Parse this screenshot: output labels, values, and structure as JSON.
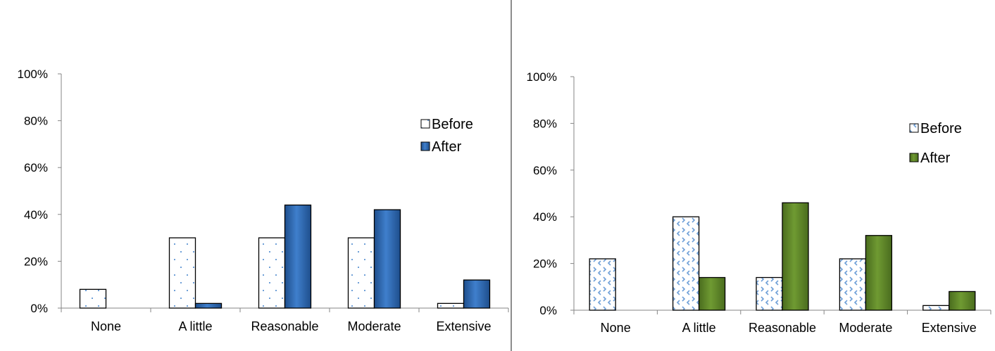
{
  "chart_data": [
    {
      "type": "bar",
      "title": "",
      "xlabel": "",
      "ylabel": "",
      "categories": [
        "None",
        "A little",
        "Reasonable",
        "Moderate",
        "Extensive"
      ],
      "yticks": [
        "0%",
        "20%",
        "40%",
        "60%",
        "80%",
        "100%"
      ],
      "ylim": [
        0,
        100
      ],
      "grid": false,
      "legend_position": "right",
      "series": [
        {
          "name": "Before",
          "values": [
            8,
            30,
            30,
            30,
            2
          ],
          "color": "#ffffff",
          "pattern": "dots",
          "pattern_color": "#6fa0d8"
        },
        {
          "name": "After",
          "values": [
            0,
            2,
            44,
            42,
            12
          ],
          "color": "#3f7fcc",
          "pattern": "solid-gradient",
          "pattern_color": "#1e4e8c"
        }
      ]
    },
    {
      "type": "bar",
      "title": "",
      "xlabel": "",
      "ylabel": "",
      "categories": [
        "None",
        "A little",
        "Reasonable",
        "Moderate",
        "Extensive"
      ],
      "yticks": [
        "0%",
        "20%",
        "40%",
        "60%",
        "80%",
        "100%"
      ],
      "ylim": [
        0,
        100
      ],
      "grid": false,
      "legend_position": "right",
      "series": [
        {
          "name": "Before",
          "values": [
            22,
            40,
            14,
            22,
            2
          ],
          "color": "#ffffff",
          "pattern": "chevrons",
          "pattern_color": "#6fa0d8"
        },
        {
          "name": "After",
          "values": [
            0,
            14,
            46,
            32,
            8
          ],
          "color": "#6f9a32",
          "pattern": "solid-gradient",
          "pattern_color": "#4a6c1e"
        }
      ]
    }
  ]
}
